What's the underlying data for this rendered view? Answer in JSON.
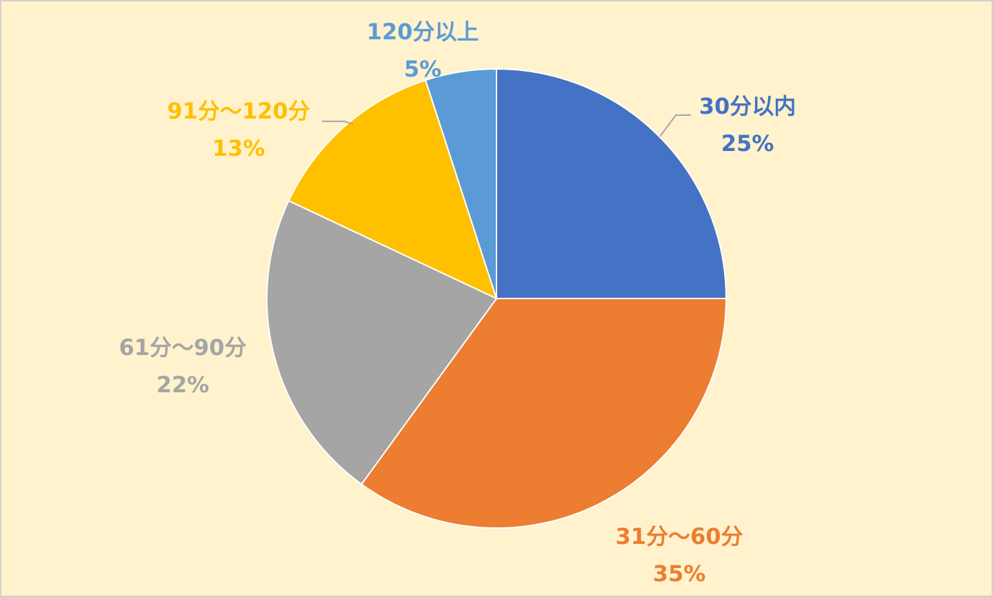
{
  "chart_data": {
    "type": "pie",
    "title": "",
    "start_angle_deg": 0,
    "direction": "clockwise",
    "slices": [
      {
        "label": "30分以内",
        "percent_label": "25%",
        "value": 25,
        "color": "#4472c4"
      },
      {
        "label": "31分～60分",
        "percent_label": "35%",
        "value": 35,
        "color": "#ed7d31"
      },
      {
        "label": "61分～90分",
        "percent_label": "22%",
        "value": 22,
        "color": "#a5a5a5"
      },
      {
        "label": "91分～120分",
        "percent_label": "13%",
        "value": 13,
        "color": "#ffc000"
      },
      {
        "label": "120分以上",
        "percent_label": "5%",
        "value": 5,
        "color": "#5b9bd5"
      }
    ],
    "background_color": "#fff2cc",
    "legend": "none",
    "data_labels": "outside"
  }
}
